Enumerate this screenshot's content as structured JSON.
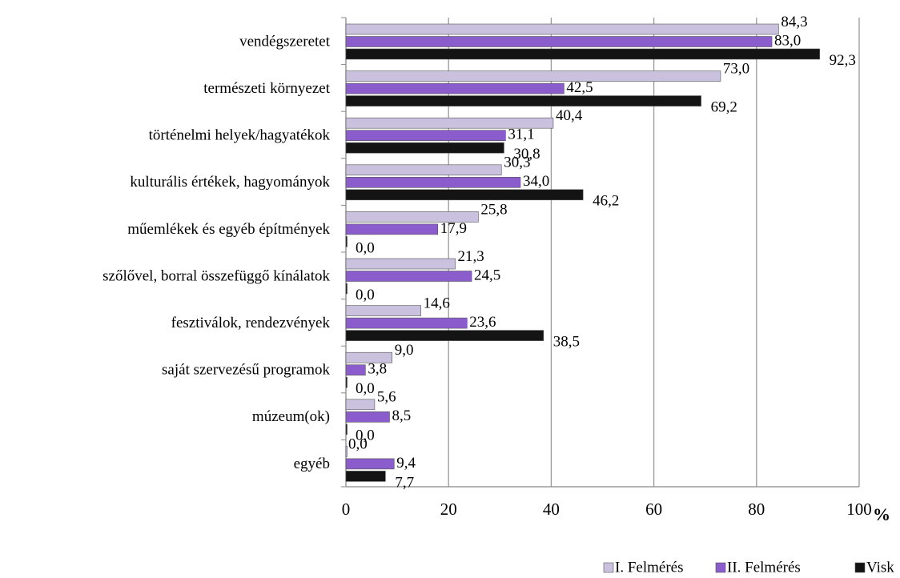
{
  "chart_data": {
    "type": "bar",
    "orientation": "horizontal",
    "categories": [
      "vendégszeretet",
      "természeti környezet",
      "történelmi helyek/hagyatékok",
      "kulturális értékek, hagyományok",
      "műemlékek és egyéb építmények",
      "szőlővel, borral összefüggő kínálatok",
      "fesztiválok, rendezvények",
      "saját szervezésű programok",
      "múzeum(ok)",
      "egyéb"
    ],
    "series": [
      {
        "name": "I. Felmérés",
        "color": "#c9c1dd",
        "values": [
          84.3,
          73.0,
          40.4,
          30.3,
          25.8,
          21.3,
          14.6,
          9.0,
          5.6,
          0.0
        ],
        "value_labels": [
          "84,3",
          "73,0",
          "40,4",
          "30,3",
          "25,8",
          "21,3",
          "14,6",
          "9,0",
          "5,6",
          "0,0"
        ]
      },
      {
        "name": "II. Felmérés",
        "color": "#8a5ccc",
        "values": [
          83.0,
          42.5,
          31.1,
          34.0,
          17.9,
          24.5,
          23.6,
          3.8,
          8.5,
          9.4
        ],
        "value_labels": [
          "83,0",
          "42,5",
          "31,1",
          "34,0",
          "17,9",
          "24,5",
          "23,6",
          "3,8",
          "8,5",
          "9,4"
        ]
      },
      {
        "name": "Visk",
        "color": "#141414",
        "values": [
          92.3,
          69.2,
          30.8,
          46.2,
          0.0,
          0.0,
          38.5,
          0.0,
          0.0,
          7.7
        ],
        "value_labels": [
          "92,3",
          "69,2",
          "30,8",
          "46,2",
          "0,0",
          "0,0",
          "38,5",
          "0,0",
          "0,0",
          "7,7"
        ]
      }
    ],
    "xlim": [
      0,
      100
    ],
    "xticks": [
      0,
      20,
      40,
      60,
      80,
      100
    ],
    "x_unit": "%",
    "grid": true,
    "legend": "bottom"
  }
}
